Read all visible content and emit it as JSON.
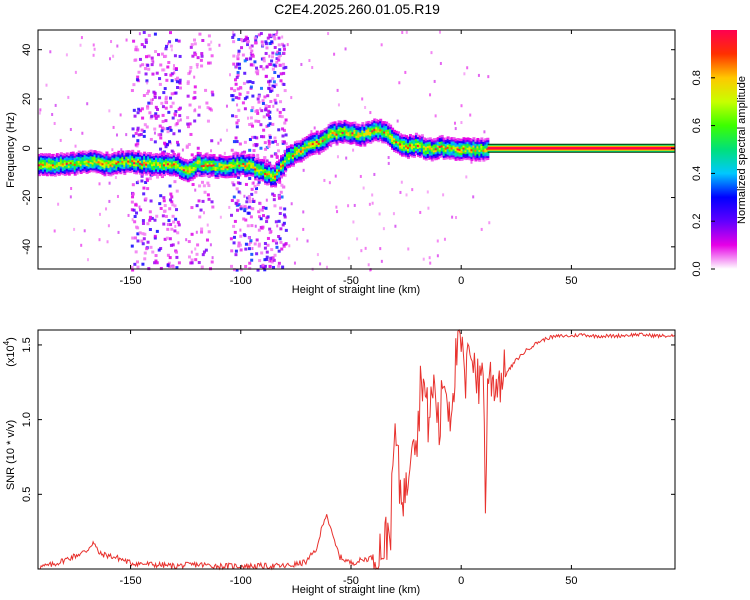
{
  "figure": {
    "title": "C2E4.2025.260.01.05.R19"
  },
  "chart_data": [
    {
      "type": "heatmap",
      "xlabel": "Height of straight line (km)",
      "ylabel": "Frequency (Hz)",
      "xlim": [
        -192,
        97
      ],
      "ylim": [
        -49,
        48
      ],
      "xticks": [
        -150,
        -100,
        -50,
        0,
        50
      ],
      "yticks": [
        -40,
        -20,
        0,
        20,
        40
      ],
      "grid": false,
      "colorbar": {
        "label": "Normalized spectral amplitude",
        "range": [
          0,
          1
        ],
        "ticks": [
          "0.0",
          "0.2",
          "0.4",
          "0.6",
          "0.8"
        ],
        "tick_values": [
          0.0,
          0.2,
          0.4,
          0.6,
          0.8
        ],
        "colormap_stops": [
          "#ffffff",
          "#e600e6",
          "#6000ff",
          "#0000ff",
          "#00c8ff",
          "#00e07a",
          "#3cff00",
          "#c8ff00",
          "#ffc800",
          "#ff3000",
          "#ff0050"
        ]
      },
      "ridge": {
        "description_free": true,
        "x": [
          -192,
          -180,
          -170,
          -160,
          -150,
          -140,
          -130,
          -125,
          -120,
          -110,
          -100,
          -95,
          -90,
          -85,
          -80,
          -75,
          -70,
          -65,
          -60,
          -55,
          -50,
          -45,
          -40,
          -35,
          -30,
          -25,
          -20,
          -15,
          -10,
          -5,
          0,
          5,
          10,
          12,
          30,
          60,
          97
        ],
        "y": [
          -6,
          -6,
          -5,
          -6,
          -5,
          -6,
          -6,
          -9,
          -6,
          -7,
          -6,
          -7,
          -9,
          -11,
          -4,
          -1,
          1,
          3,
          6,
          7,
          7,
          6,
          8,
          7,
          3,
          1,
          2,
          0,
          1,
          0,
          0,
          0,
          0,
          0,
          0,
          0,
          0
        ],
        "min_amplitude": 0.3,
        "max_amplitude": 1.0
      },
      "noise_regions": [
        {
          "x": [
            -150,
            -128
          ],
          "y": [
            -49,
            48
          ],
          "level": 0.18
        },
        {
          "x": [
            -125,
            -113
          ],
          "y": [
            -49,
            48
          ],
          "level": 0.1
        },
        {
          "x": [
            -105,
            -80
          ],
          "y": [
            -49,
            48
          ],
          "level": 0.22
        }
      ],
      "tone": {
        "x": [
          12,
          97
        ],
        "y": 0,
        "amplitude": 0.95
      }
    },
    {
      "type": "line",
      "xlabel": "Height of straight line (km)",
      "ylabel": "SNR (10 * v/v)",
      "scale_label": "(x10",
      "scale_exponent": "4",
      "xlim": [
        -192,
        97
      ],
      "ylim": [
        0,
        1.6
      ],
      "xticks": [
        -150,
        -100,
        -50,
        0,
        50
      ],
      "yticks": [
        0.5,
        1.0,
        1.5
      ],
      "ytick_labels": [
        "0.5",
        "1.0",
        "1.5"
      ],
      "grid": false,
      "series": [
        {
          "color": "#e8322e",
          "x": [
            -192,
            -185,
            -180,
            -175,
            -170,
            -167,
            -164,
            -160,
            -155,
            -150,
            -140,
            -130,
            -120,
            -110,
            -100,
            -90,
            -80,
            -75,
            -70,
            -65,
            -63,
            -61,
            -59,
            -57,
            -55,
            -50,
            -45,
            -40,
            -35,
            -32,
            -30,
            -28,
            -25,
            -22,
            -20,
            -18,
            -15,
            -12,
            -10,
            -8,
            -5,
            -2,
            0,
            2,
            4,
            6,
            8,
            10,
            11,
            12,
            15,
            20,
            25,
            30,
            35,
            40,
            45,
            50,
            55,
            60,
            70,
            80,
            90,
            97
          ],
          "y": [
            0.01,
            0.03,
            0.06,
            0.09,
            0.12,
            0.18,
            0.1,
            0.09,
            0.07,
            0.04,
            0.03,
            0.02,
            0.03,
            0.02,
            0.02,
            0.02,
            0.02,
            0.03,
            0.05,
            0.15,
            0.3,
            0.37,
            0.25,
            0.16,
            0.08,
            0.04,
            0.06,
            0.08,
            0.16,
            0.3,
            0.95,
            0.55,
            0.5,
            1.0,
            0.85,
            1.35,
            1.0,
            1.25,
            0.9,
            1.3,
            1.05,
            1.45,
            1.5,
            1.2,
            1.55,
            1.4,
            1.2,
            1.45,
            0.33,
            1.3,
            1.25,
            1.3,
            1.4,
            1.47,
            1.52,
            1.55,
            1.56,
            1.56,
            1.57,
            1.56,
            1.56,
            1.57,
            1.56,
            1.56
          ]
        }
      ]
    }
  ]
}
